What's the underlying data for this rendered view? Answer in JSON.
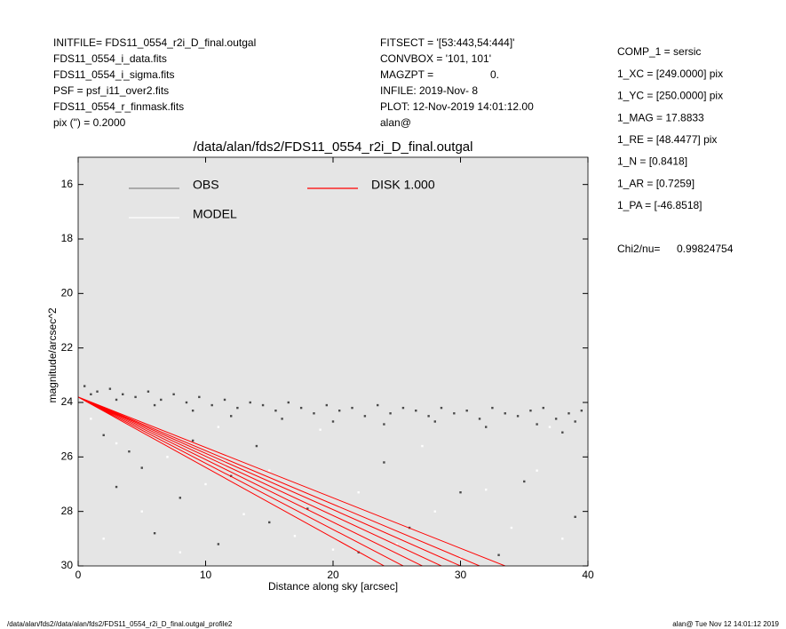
{
  "header": {
    "left": [
      "INITFILE= FDS11_0554_r2i_D_final.outgal",
      "FDS11_0554_i_data.fits",
      "FDS11_0554_i_sigma.fits",
      "PSF     = psf_i11_over2.fits",
      "FDS11_0554_r_finmask.fits",
      "pix (\") =  0.2000"
    ],
    "middle": [
      "FITSECT = '[53:443,54:444]'",
      "CONVBOX = '101, 101'",
      "MAGZPT =",
      "INFILE: 2019-Nov- 8",
      "PLOT: 12-Nov-2019 14:01:12.00",
      "alan@"
    ],
    "magzpt_value": "0.",
    "right": [
      "COMP_1  = sersic",
      "1_XC    = [249.0000] pix",
      "1_YC    = [250.0000] pix",
      "1_MAG   = 17.8833",
      "1_RE    = [48.4477] pix",
      "1_N     = [0.8418]",
      "1_AR    = [0.7259]",
      "1_PA    = [-46.8518]"
    ],
    "chi2_label": "Chi2/nu=",
    "chi2_value": "0.99824754"
  },
  "footer": {
    "left": "/data/alan/fds2//data/alan/fds2/FDS11_0554_r2i_D_final.outgal_profile2",
    "right": "alan@  Tue Nov 12 14:01:12 2019"
  },
  "chart_data": {
    "type": "scatter",
    "title": "/data/alan/fds2/FDS11_0554_r2i_D_final.outgal",
    "xlabel": "Distance along sky [arcsec]",
    "ylabel": "magnitude/arcsec^2",
    "xlim": [
      0,
      40
    ],
    "xticks": [
      0,
      10,
      20,
      30,
      40
    ],
    "ylim": [
      15,
      30
    ],
    "yticks": [
      16,
      18,
      20,
      22,
      24,
      26,
      28,
      30
    ],
    "y_inverted": true,
    "background": "#e5e5e5",
    "series": [
      {
        "name": "OBS",
        "color": "#4a4a4a",
        "legend_color": "#888888",
        "kind": "points",
        "x": [
          0.5,
          1.5,
          2.5,
          3.5,
          4.5,
          5.5,
          6.5,
          7.5,
          8.5,
          9.5,
          10.5,
          11.5,
          12.5,
          13.5,
          14.5,
          15.5,
          16.5,
          17.5,
          18.5,
          19.5,
          20.5,
          21.5,
          22.5,
          23.5,
          24.5,
          25.5,
          26.5,
          27.5,
          28.5,
          29.5,
          30.5,
          31.5,
          32.5,
          33.5,
          34.5,
          35.5,
          36.5,
          37.5,
          38.5,
          39.5,
          1,
          3,
          6,
          9,
          12,
          16,
          20,
          24,
          28,
          32,
          36,
          39,
          2,
          4,
          5,
          3,
          8,
          6,
          11,
          15,
          22,
          30,
          35,
          38,
          12,
          18,
          26,
          33,
          39,
          9,
          14,
          24
        ],
        "values": [
          23.4,
          23.6,
          23.5,
          23.7,
          23.8,
          23.6,
          23.9,
          23.7,
          24.0,
          23.8,
          24.1,
          23.9,
          24.2,
          24.0,
          24.1,
          24.3,
          24.0,
          24.2,
          24.4,
          24.1,
          24.3,
          24.2,
          24.5,
          24.1,
          24.4,
          24.2,
          24.3,
          24.5,
          24.2,
          24.4,
          24.3,
          24.6,
          24.2,
          24.4,
          24.5,
          24.3,
          24.2,
          24.6,
          24.4,
          24.3,
          23.7,
          23.9,
          24.1,
          24.3,
          24.5,
          24.6,
          24.7,
          24.8,
          24.7,
          24.9,
          24.8,
          24.7,
          25.2,
          25.8,
          26.4,
          27.1,
          27.5,
          28.8,
          29.2,
          28.4,
          29.5,
          27.3,
          26.9,
          25.1,
          26.7,
          27.9,
          28.6,
          29.6,
          28.2,
          25.4,
          25.6,
          26.2
        ]
      },
      {
        "name": "MODEL",
        "color": "#ffffff",
        "legend_color": "#ffffff",
        "kind": "points",
        "x": [
          1,
          3,
          7,
          10,
          13,
          17,
          20,
          25,
          28,
          32,
          36,
          38,
          40,
          5,
          15,
          22,
          30,
          34,
          27,
          19,
          8,
          2,
          37,
          11
        ],
        "values": [
          24.6,
          25.5,
          26.0,
          27.0,
          28.1,
          28.9,
          29.4,
          29.2,
          28.0,
          27.2,
          26.5,
          29.0,
          25.8,
          28.0,
          26.5,
          27.3,
          29.7,
          28.6,
          25.6,
          25.0,
          29.5,
          29.0,
          24.9,
          24.9
        ]
      },
      {
        "name": "DISK  1.000",
        "color": "#ff0000",
        "legend_color": "#ff0000",
        "kind": "line",
        "x": [
          0,
          24,
          null,
          0,
          25.5,
          null,
          0,
          27,
          null,
          0,
          28.5,
          null,
          0,
          30,
          null,
          0,
          31.5,
          null,
          0,
          33.5
        ],
        "values": [
          23.8,
          30,
          null,
          23.8,
          30,
          null,
          23.8,
          30,
          null,
          23.8,
          30,
          null,
          23.8,
          30,
          null,
          23.8,
          30,
          null,
          23.8,
          30
        ]
      }
    ]
  }
}
